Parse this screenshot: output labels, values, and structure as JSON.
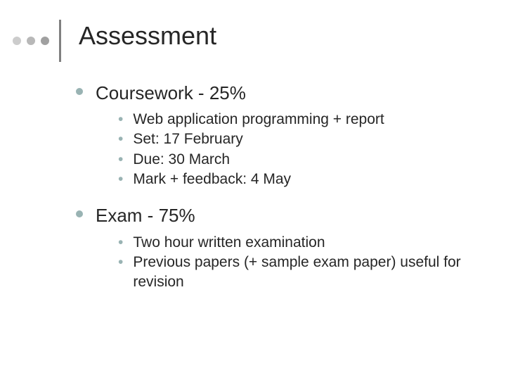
{
  "slide": {
    "title": "Assessment",
    "decorator": {
      "dot_colors": [
        "#cccccc",
        "#b8b8b8",
        "#a0a0a0"
      ],
      "bar_color": "#808080"
    },
    "title_fontsize": 36,
    "title_color": "#262626",
    "bullets": [
      {
        "text": "Coursework - 25%",
        "children": [
          "Web application programming + report",
          "Set: 17 February",
          "Due: 30 March",
          "Mark + feedback: 4 May"
        ]
      },
      {
        "text": "Exam - 75%",
        "children": [
          "Two hour written examination",
          "Previous papers (+ sample exam paper) useful for revision"
        ]
      }
    ],
    "l1_fontsize": 26,
    "l2_fontsize": 21,
    "l1_bullet_color": "#99b3b3",
    "l2_bullet_color": "#99b3b3",
    "text_color": "#262626",
    "background_color": "#ffffff"
  }
}
